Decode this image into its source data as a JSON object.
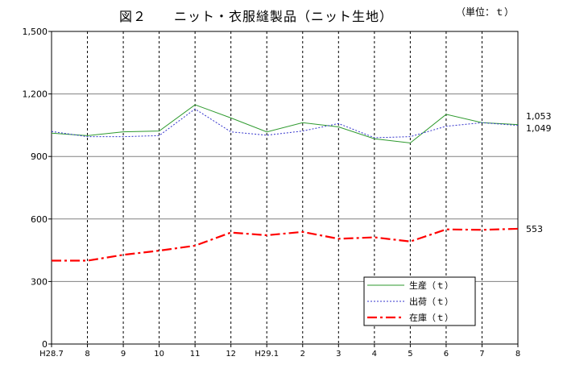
{
  "page": {
    "title": "図２　　ニット・衣服縫製品（ニット生地）",
    "unit": "（単位：ｔ）"
  },
  "chart_data": {
    "type": "line",
    "categories": [
      "H28.7",
      "8",
      "9",
      "10",
      "11",
      "12",
      "H29.1",
      "2",
      "3",
      "4",
      "5",
      "6",
      "7",
      "8"
    ],
    "ylim": [
      0,
      1500
    ],
    "yticks": [
      "0",
      "300",
      "600",
      "900",
      "1,200",
      "1,500"
    ],
    "ytick_values": [
      0,
      300,
      600,
      900,
      1200,
      1500
    ],
    "grid": "horizontal solid lines, vertical dashed lines",
    "legend_position": "bottom-right",
    "series": [
      {
        "name": "生産（ｔ）",
        "color": "#2e9a2e",
        "style": "solid",
        "values": [
          1012,
          1000,
          1018,
          1022,
          1148,
          1085,
          1018,
          1062,
          1042,
          985,
          965,
          1102,
          1062,
          1053
        ],
        "end_label": "1,053"
      },
      {
        "name": "出荷（ｔ）",
        "color": "#3333cc",
        "style": "dotted",
        "values": [
          1020,
          995,
          995,
          1000,
          1128,
          1018,
          1002,
          1022,
          1058,
          990,
          995,
          1045,
          1062,
          1049
        ],
        "end_label": "1,049"
      },
      {
        "name": "在庫（ｔ）",
        "color": "#ff0000",
        "style": "dashdot",
        "values": [
          400,
          400,
          428,
          448,
          472,
          535,
          522,
          538,
          505,
          512,
          492,
          550,
          548,
          553
        ],
        "end_label": "553"
      }
    ]
  }
}
